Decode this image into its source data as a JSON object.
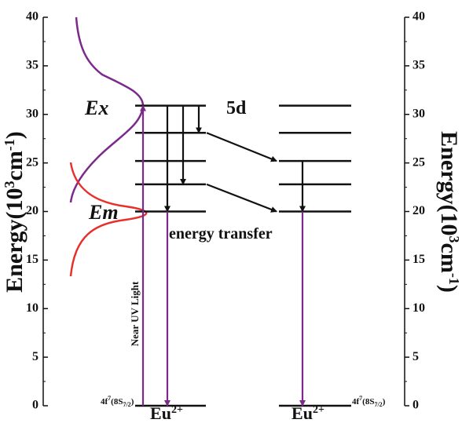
{
  "axis": {
    "ylim": [
      0,
      40
    ],
    "yticks": [
      0,
      5,
      10,
      15,
      20,
      25,
      30,
      35,
      40
    ],
    "label": {
      "main": "Energy(10",
      "sup": "3",
      "mid": "cm",
      "sup2": "-1",
      "end": ")"
    }
  },
  "left_levels": [
    0,
    20,
    22.8,
    25.2,
    28.1,
    30.9
  ],
  "right_levels": [
    0,
    20,
    22.8,
    25.2,
    28.1,
    30.9
  ],
  "labels": {
    "ex": "Ex",
    "em": "Em",
    "d5": "5d",
    "transfer": "energy transfer",
    "uv": "Near UV Light",
    "ion": {
      "main": "Eu",
      "sup": "2+"
    },
    "ground": {
      "main": "4f",
      "sup": "7",
      "mid": "(8S",
      "sub": "7/2",
      "end": ")"
    }
  }
}
